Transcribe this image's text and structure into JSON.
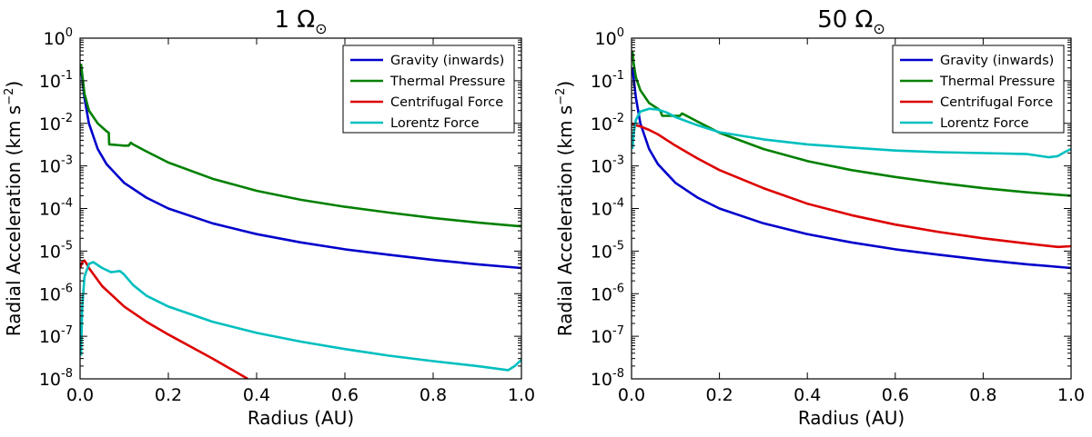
{
  "chart_data": [
    {
      "type": "line",
      "title": "1 Ω",
      "title_symbol": "⊙",
      "xlabel": "Radius (AU)",
      "ylabel": "Radial Acceleration (km s",
      "ylabel_exp": "−2",
      "ylabel_close": ")",
      "xlim": [
        0,
        1
      ],
      "ylim": [
        1e-08,
        1
      ],
      "yscale": "log",
      "xticks": [
        "0.0",
        "0.2",
        "0.4",
        "0.6",
        "0.8",
        "1.0"
      ],
      "yticks": [
        {
          "base": "10",
          "exp": "0"
        },
        {
          "base": "10",
          "exp": "-1"
        },
        {
          "base": "10",
          "exp": "-2"
        },
        {
          "base": "10",
          "exp": "-3"
        },
        {
          "base": "10",
          "exp": "-4"
        },
        {
          "base": "10",
          "exp": "-5"
        },
        {
          "base": "10",
          "exp": "-6"
        },
        {
          "base": "10",
          "exp": "-7"
        },
        {
          "base": "10",
          "exp": "-8"
        }
      ],
      "legend_position": "top-right",
      "grid": false,
      "series": [
        {
          "name": "Gravity (inwards)",
          "color": "#0000cc",
          "x": [
            0.002,
            0.01,
            0.02,
            0.04,
            0.06,
            0.1,
            0.15,
            0.2,
            0.3,
            0.4,
            0.5,
            0.6,
            0.7,
            0.8,
            0.9,
            1.0
          ],
          "y": [
            0.2,
            0.04,
            0.01,
            0.0025,
            0.0011,
            0.0004,
            0.00018,
            0.0001,
            4.5e-05,
            2.5e-05,
            1.6e-05,
            1.1e-05,
            8.2e-06,
            6.2e-06,
            4.9e-06,
            4e-06
          ]
        },
        {
          "name": "Thermal Pressure",
          "color": "#008000",
          "x": [
            0.002,
            0.01,
            0.02,
            0.04,
            0.06,
            0.065,
            0.066,
            0.1,
            0.11,
            0.115,
            0.12,
            0.15,
            0.2,
            0.3,
            0.4,
            0.5,
            0.6,
            0.7,
            0.8,
            0.9,
            1.0
          ],
          "y": [
            0.25,
            0.05,
            0.02,
            0.01,
            0.0065,
            0.006,
            0.0032,
            0.003,
            0.003,
            0.0035,
            0.0032,
            0.0022,
            0.0012,
            0.0005,
            0.00026,
            0.00016,
            0.00011,
            8e-05,
            6e-05,
            4.7e-05,
            3.8e-05
          ]
        },
        {
          "name": "Centrifugal Force",
          "color": "#dd0000",
          "x": [
            0.0,
            0.005,
            0.01,
            0.015,
            0.02,
            0.05,
            0.1,
            0.15,
            0.2,
            0.3,
            0.38
          ],
          "y": [
            4e-06,
            5.5e-06,
            6e-06,
            5e-06,
            4e-06,
            1.5e-06,
            5e-07,
            2.2e-07,
            1.1e-07,
            3e-08,
            1e-08
          ]
        },
        {
          "name": "Lorentz Force",
          "color": "#00bfbf",
          "x": [
            0.002,
            0.005,
            0.01,
            0.02,
            0.03,
            0.05,
            0.07,
            0.09,
            0.1,
            0.12,
            0.15,
            0.2,
            0.3,
            0.4,
            0.5,
            0.6,
            0.7,
            0.8,
            0.9,
            0.97,
            0.985,
            1.0
          ],
          "y": [
            3.5e-08,
            5e-07,
            2.5e-06,
            5e-06,
            5.5e-06,
            4e-06,
            3.2e-06,
            3.4e-06,
            2.8e-06,
            1.6e-06,
            9e-07,
            5e-07,
            2.2e-07,
            1.2e-07,
            7.5e-08,
            5e-08,
            3.5e-08,
            2.6e-08,
            2e-08,
            1.6e-08,
            2e-08,
            2.8e-08
          ]
        }
      ]
    },
    {
      "type": "line",
      "title": "50 Ω",
      "title_symbol": "⊙",
      "xlabel": "Radius (AU)",
      "ylabel": "Radial Acceleration (km s",
      "ylabel_exp": "−2",
      "ylabel_close": ")",
      "xlim": [
        0,
        1
      ],
      "ylim": [
        1e-08,
        1
      ],
      "yscale": "log",
      "xticks": [
        "0.0",
        "0.2",
        "0.4",
        "0.6",
        "0.8",
        "1.0"
      ],
      "yticks": [
        {
          "base": "10",
          "exp": "0"
        },
        {
          "base": "10",
          "exp": "-1"
        },
        {
          "base": "10",
          "exp": "-2"
        },
        {
          "base": "10",
          "exp": "-3"
        },
        {
          "base": "10",
          "exp": "-4"
        },
        {
          "base": "10",
          "exp": "-5"
        },
        {
          "base": "10",
          "exp": "-6"
        },
        {
          "base": "10",
          "exp": "-7"
        },
        {
          "base": "10",
          "exp": "-8"
        }
      ],
      "legend_position": "top-right",
      "grid": false,
      "series": [
        {
          "name": "Gravity (inwards)",
          "color": "#0000cc",
          "x": [
            0.002,
            0.01,
            0.02,
            0.04,
            0.06,
            0.1,
            0.15,
            0.2,
            0.3,
            0.4,
            0.5,
            0.6,
            0.7,
            0.8,
            0.9,
            1.0
          ],
          "y": [
            0.2,
            0.04,
            0.01,
            0.0025,
            0.0011,
            0.0004,
            0.00018,
            0.0001,
            4.5e-05,
            2.5e-05,
            1.6e-05,
            1.1e-05,
            8.2e-06,
            6.2e-06,
            4.9e-06,
            4e-06
          ]
        },
        {
          "name": "Thermal Pressure",
          "color": "#008000",
          "x": [
            0.002,
            0.005,
            0.01,
            0.02,
            0.04,
            0.06,
            0.065,
            0.07,
            0.1,
            0.11,
            0.115,
            0.12,
            0.15,
            0.2,
            0.3,
            0.4,
            0.5,
            0.6,
            0.7,
            0.8,
            0.9,
            1.0
          ],
          "y": [
            0.5,
            0.25,
            0.12,
            0.06,
            0.03,
            0.022,
            0.02,
            0.015,
            0.015,
            0.015,
            0.017,
            0.016,
            0.011,
            0.006,
            0.0025,
            0.0013,
            0.0008,
            0.00055,
            0.0004,
            0.0003,
            0.00024,
            0.0002
          ]
        },
        {
          "name": "Centrifugal Force",
          "color": "#dd0000",
          "x": [
            0.002,
            0.01,
            0.02,
            0.04,
            0.06,
            0.1,
            0.15,
            0.2,
            0.3,
            0.4,
            0.5,
            0.6,
            0.7,
            0.8,
            0.9,
            0.97,
            1.0
          ],
          "y": [
            0.01,
            0.009,
            0.0085,
            0.007,
            0.0055,
            0.003,
            0.0015,
            0.0008,
            0.0003,
            0.00013,
            7e-05,
            4.2e-05,
            2.8e-05,
            2e-05,
            1.5e-05,
            1.25e-05,
            1.3e-05
          ]
        },
        {
          "name": "Lorentz Force",
          "color": "#00bfbf",
          "x": [
            0.002,
            0.005,
            0.01,
            0.02,
            0.04,
            0.06,
            0.08,
            0.1,
            0.15,
            0.2,
            0.3,
            0.4,
            0.5,
            0.6,
            0.7,
            0.8,
            0.9,
            0.95,
            0.97,
            0.985,
            1.0
          ],
          "y": [
            0.0025,
            0.006,
            0.012,
            0.019,
            0.022,
            0.021,
            0.018,
            0.014,
            0.009,
            0.0062,
            0.0042,
            0.0032,
            0.0027,
            0.0023,
            0.0021,
            0.002,
            0.0019,
            0.0016,
            0.0017,
            0.0021,
            0.0025
          ]
        }
      ]
    }
  ]
}
